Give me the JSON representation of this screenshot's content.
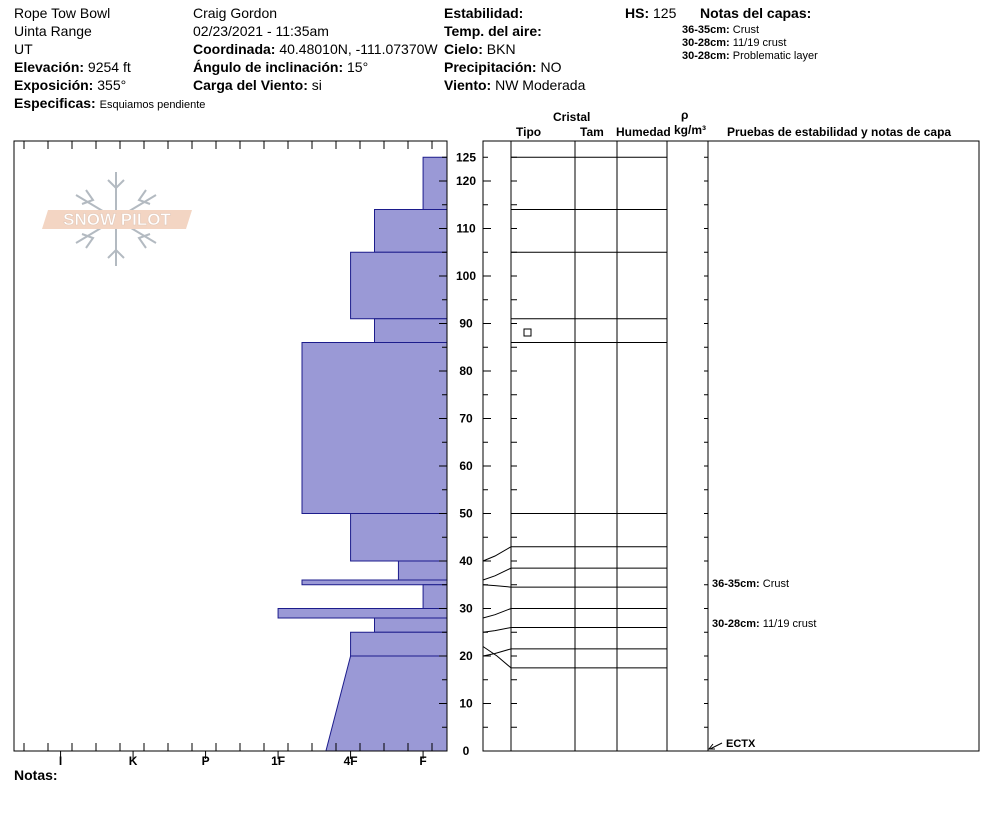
{
  "header": {
    "location": "Rope Tow Bowl",
    "range": "Uinta Range",
    "state": "UT",
    "elevation": {
      "label": "Elevación:",
      "value": "9254 ft"
    },
    "aspect": {
      "label": "Exposición:",
      "value": "355°"
    },
    "specifics": {
      "label": "Especificas:",
      "value": "Esquiamos pendiente"
    },
    "observer": "Craig Gordon",
    "datetime": "02/23/2021 - 11:35am",
    "coordinates": {
      "label": "Coordinada:",
      "value": "40.48010N, -111.07370W"
    },
    "slope_angle": {
      "label": "Ángulo de inclinación:",
      "value": "15°"
    },
    "wind_loading": {
      "label": "Carga del Viento:",
      "value": "si"
    },
    "stability": {
      "label": "Estabilidad:",
      "value": ""
    },
    "air_temp": {
      "label": "Temp. del aire:",
      "value": ""
    },
    "sky": {
      "label": "Cielo:",
      "value": "BKN"
    },
    "precipitation": {
      "label": "Precipitación:",
      "value": "NO"
    },
    "wind": {
      "label": "Viento:",
      "value": "NW Moderada"
    },
    "hs": {
      "label": "HS:",
      "value": "125"
    },
    "layer_notes_title": "Notas del capas:",
    "layer_notes": [
      {
        "depth": "36-35cm:",
        "text": "Crust"
      },
      {
        "depth": "30-28cm:",
        "text": "11/19 crust"
      },
      {
        "depth": "30-28cm:",
        "text": "Problematic layer"
      }
    ]
  },
  "logo_text": "SNOW PILOT",
  "column_headers": {
    "cristal": "Cristal",
    "tipo": "Tipo",
    "tam": "Tam",
    "humedad": "Humedad",
    "rho": "ρ",
    "density_unit": "kg/m³",
    "tests": "Pruebas de estabilidad y notas de capa"
  },
  "notes_label": "Notas:",
  "test_annotations": [
    {
      "depth_cm": 35.5,
      "depth_label": "36-35cm:",
      "text": "Crust"
    },
    {
      "depth_cm": 27.5,
      "depth_label": "30-28cm:",
      "text": "11/19 crust"
    },
    {
      "depth_cm": 0,
      "depth_label": "",
      "text": "ECTX"
    }
  ],
  "colors": {
    "layer_fill": "#9a99d6",
    "layer_stroke": "#1c1c8c",
    "line": "#000000"
  },
  "chart_data": {
    "type": "bar",
    "orientation": "horizontal-stepped",
    "ylabel": "",
    "ylim": [
      0,
      128
    ],
    "yticks": [
      0,
      10,
      20,
      30,
      40,
      50,
      60,
      70,
      80,
      90,
      100,
      110,
      120,
      125
    ],
    "hardness_categories": [
      "I",
      "K",
      "P",
      "1F",
      "4F",
      "F"
    ],
    "hardness_scale_note": "F = softest (right edge), values in hardness index where F=0, 4F=1, 1F=2, P=3, K=4, I=5",
    "layers": [
      {
        "top": 125,
        "bottom": 114,
        "hardness": 0.33
      },
      {
        "top": 114,
        "bottom": 105,
        "hardness": 1.0
      },
      {
        "top": 105,
        "bottom": 91,
        "hardness": 1.33
      },
      {
        "top": 91,
        "bottom": 86,
        "hardness": 1.0
      },
      {
        "top": 86,
        "bottom": 50,
        "hardness": 2.0
      },
      {
        "top": 50,
        "bottom": 40,
        "hardness": 1.33
      },
      {
        "top": 40,
        "bottom": 36,
        "hardness": 0.67
      },
      {
        "top": 36,
        "bottom": 35,
        "hardness": 2.0
      },
      {
        "top": 35,
        "bottom": 30,
        "hardness": 0.33
      },
      {
        "top": 30,
        "bottom": 28,
        "hardness": 2.33
      },
      {
        "top": 28,
        "bottom": 25,
        "hardness": 1.0
      },
      {
        "top": 25,
        "bottom": 20,
        "hardness": 1.33
      },
      {
        "top": 20,
        "bottom": 0,
        "hardness": 1.33,
        "hardness_bottom": 1.67
      }
    ],
    "layer_boundaries_cm": [
      125,
      114,
      105,
      91,
      86,
      50,
      43,
      38.5,
      34.5,
      30,
      26,
      21.5,
      17.5
    ],
    "grain_symbol_depth_cm": 88
  }
}
